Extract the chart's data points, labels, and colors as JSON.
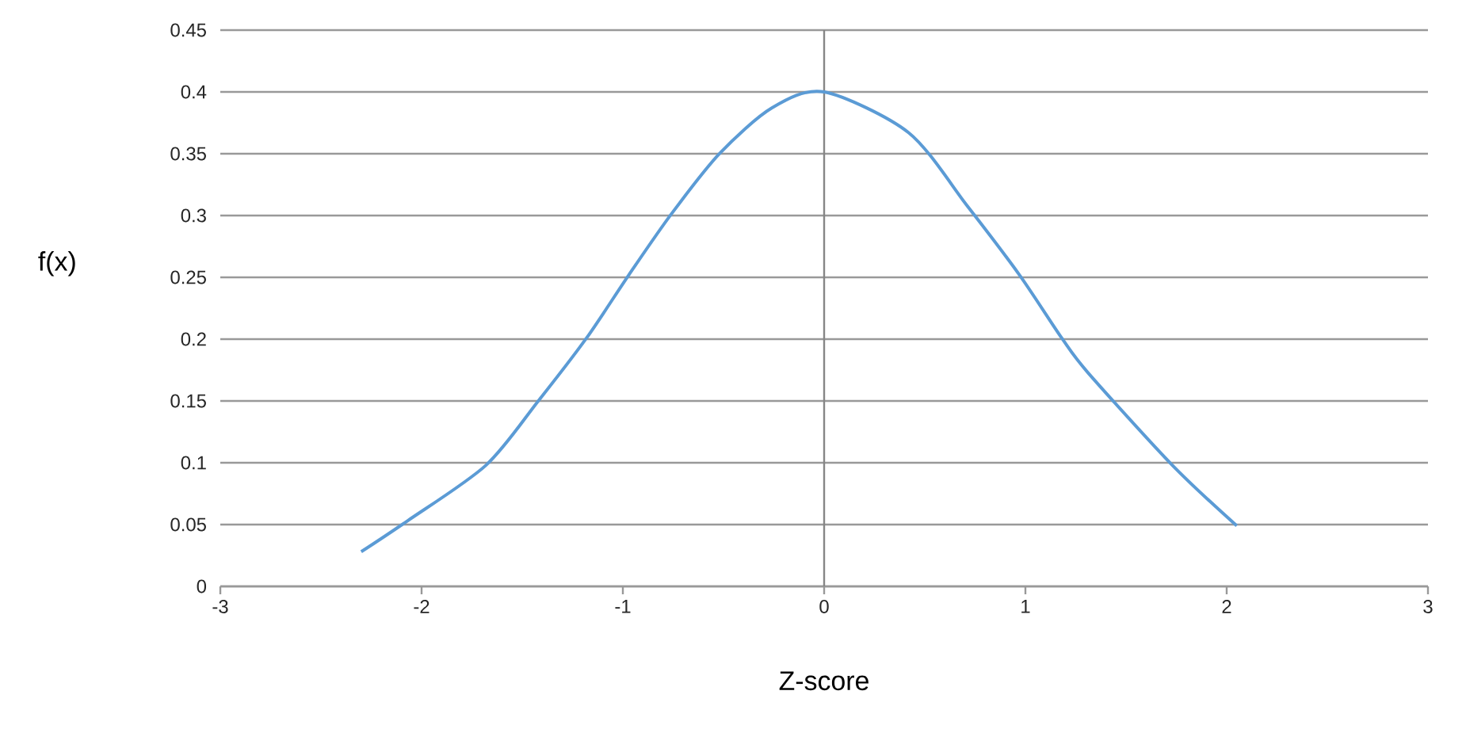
{
  "chart_data": {
    "type": "line",
    "xlabel": "Z-score",
    "ylabel": "f(x)",
    "series": [
      {
        "color": "#5b9bd5",
        "x": [
          -2.3,
          -2.07,
          -1.68,
          -1.42,
          -1.18,
          -0.97,
          -0.76,
          -0.52,
          -0.26,
          0,
          0.42,
          0.71,
          0.97,
          1.18,
          1.31,
          1.73,
          2.05
        ],
        "values": [
          0.028,
          0.053,
          0.098,
          0.15,
          0.201,
          0.252,
          0.301,
          0.35,
          0.387,
          0.4,
          0.367,
          0.308,
          0.252,
          0.201,
          0.173,
          0.098,
          0.049
        ]
      }
    ],
    "xlim": [
      -3,
      3
    ],
    "xticks": [
      -3,
      -2,
      -1,
      0,
      1,
      2,
      3
    ],
    "ylim": [
      0,
      0.45
    ],
    "yticks": [
      0,
      0.05,
      0.1,
      0.15,
      0.2,
      0.25,
      0.3,
      0.35,
      0.4,
      0.45
    ],
    "grid": "y",
    "marker": "none",
    "line_style": "solid",
    "ref_lines": [
      {
        "axis": "x",
        "value": 0,
        "color": "#868686"
      }
    ]
  }
}
